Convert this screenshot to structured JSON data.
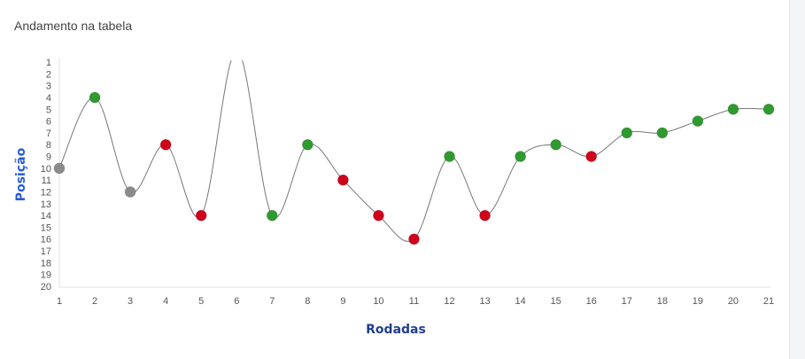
{
  "panel": {
    "title": "Andamento na tabela"
  },
  "chart_data": {
    "type": "line",
    "title": "",
    "xlabel": "Rodadas",
    "ylabel": "Posição",
    "x": [
      1,
      2,
      3,
      4,
      5,
      6,
      7,
      8,
      9,
      10,
      11,
      12,
      13,
      14,
      15,
      16,
      17,
      18,
      19,
      20,
      21
    ],
    "values": [
      10,
      4,
      12,
      8,
      14,
      0,
      14,
      8,
      11,
      14,
      16,
      9,
      14,
      9,
      8,
      9,
      7,
      7,
      6,
      5,
      5
    ],
    "point_colors": [
      "gray",
      "green",
      "gray",
      "red",
      "red",
      "none",
      "green",
      "green",
      "red",
      "red",
      "red",
      "green",
      "red",
      "green",
      "green",
      "red",
      "green",
      "green",
      "green",
      "green",
      "green"
    ],
    "ylim": [
      1,
      20
    ],
    "y_reversed": true,
    "xlim": [
      1,
      21
    ],
    "smooth": true,
    "grid": false,
    "colors": {
      "green": "#2f9a2f",
      "red": "#d0021b",
      "gray": "#8a8a8a",
      "line": "#777777",
      "axis_label": "#1f3f8f",
      "ylabel": "#2a5bd7"
    }
  }
}
